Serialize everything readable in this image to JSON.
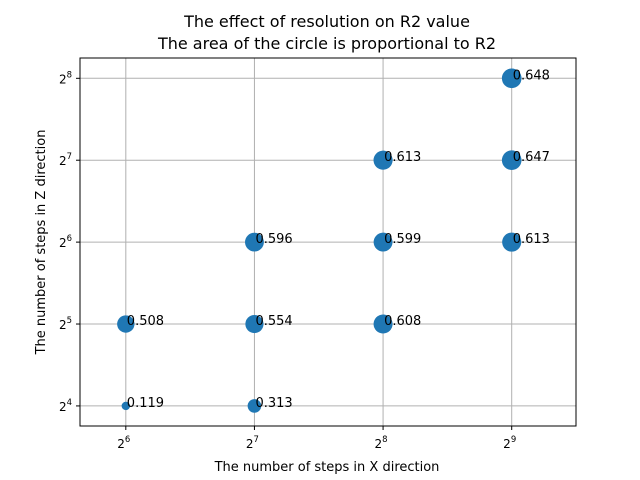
{
  "chart_data": {
    "type": "scatter",
    "title": "The effect of resolution on R2 value",
    "subtitle": "The area of the circle is proportional to R2",
    "xlabel": "The number of steps in X direction",
    "ylabel": "The number of steps in Z direction",
    "x_scale": "log2",
    "y_scale": "log2",
    "xlim": [
      50,
      724
    ],
    "ylim": [
      13.5,
      304
    ],
    "x_ticks": [
      64,
      128,
      256,
      512
    ],
    "x_tick_labels": [
      {
        "base": "2",
        "exp": "6"
      },
      {
        "base": "2",
        "exp": "7"
      },
      {
        "base": "2",
        "exp": "8"
      },
      {
        "base": "2",
        "exp": "9"
      }
    ],
    "y_ticks": [
      16,
      32,
      64,
      128,
      256
    ],
    "y_tick_labels": [
      {
        "base": "2",
        "exp": "4"
      },
      {
        "base": "2",
        "exp": "5"
      },
      {
        "base": "2",
        "exp": "6"
      },
      {
        "base": "2",
        "exp": "7"
      },
      {
        "base": "2",
        "exp": "8"
      }
    ],
    "grid": true,
    "marker_color": "#1f77b4",
    "points": [
      {
        "x": 64,
        "z": 16,
        "r2": 0.119,
        "label": "0.119"
      },
      {
        "x": 64,
        "z": 32,
        "r2": 0.508,
        "label": "0.508"
      },
      {
        "x": 128,
        "z": 16,
        "r2": 0.313,
        "label": "0.313"
      },
      {
        "x": 128,
        "z": 32,
        "r2": 0.554,
        "label": "0.554"
      },
      {
        "x": 128,
        "z": 64,
        "r2": 0.596,
        "label": "0.596"
      },
      {
        "x": 256,
        "z": 32,
        "r2": 0.608,
        "label": "0.608"
      },
      {
        "x": 256,
        "z": 64,
        "r2": 0.599,
        "label": "0.599"
      },
      {
        "x": 256,
        "z": 128,
        "r2": 0.613,
        "label": "0.613"
      },
      {
        "x": 512,
        "z": 64,
        "r2": 0.613,
        "label": "0.613"
      },
      {
        "x": 512,
        "z": 128,
        "r2": 0.647,
        "label": "0.647"
      },
      {
        "x": 512,
        "z": 256,
        "r2": 0.648,
        "label": "0.648"
      }
    ]
  }
}
